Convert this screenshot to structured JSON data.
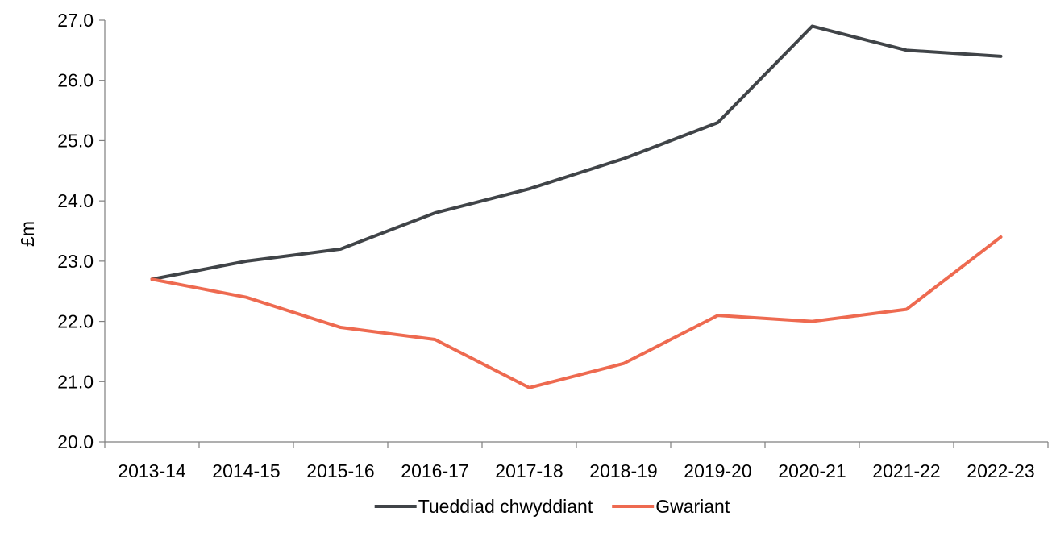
{
  "chart_data": {
    "type": "line",
    "title": "",
    "xlabel": "",
    "ylabel": "£m",
    "ylim": [
      20.0,
      27.0
    ],
    "ytick_step": 1.0,
    "grid": false,
    "legend_position": "bottom-center",
    "categories": [
      "2013-14",
      "2014-15",
      "2015-16",
      "2016-17",
      "2017-18",
      "2018-19",
      "2019-20",
      "2020-21",
      "2021-22",
      "2022-23"
    ],
    "series": [
      {
        "name": "Tueddiad chwyddiant",
        "color": "#404448",
        "values": [
          22.7,
          23.0,
          23.2,
          23.8,
          24.2,
          24.7,
          25.3,
          26.9,
          26.5,
          26.4
        ]
      },
      {
        "name": "Gwariant",
        "color": "#EE6A50",
        "values": [
          22.7,
          22.4,
          21.9,
          21.7,
          20.9,
          21.3,
          22.1,
          22.0,
          22.2,
          23.4
        ]
      }
    ]
  }
}
